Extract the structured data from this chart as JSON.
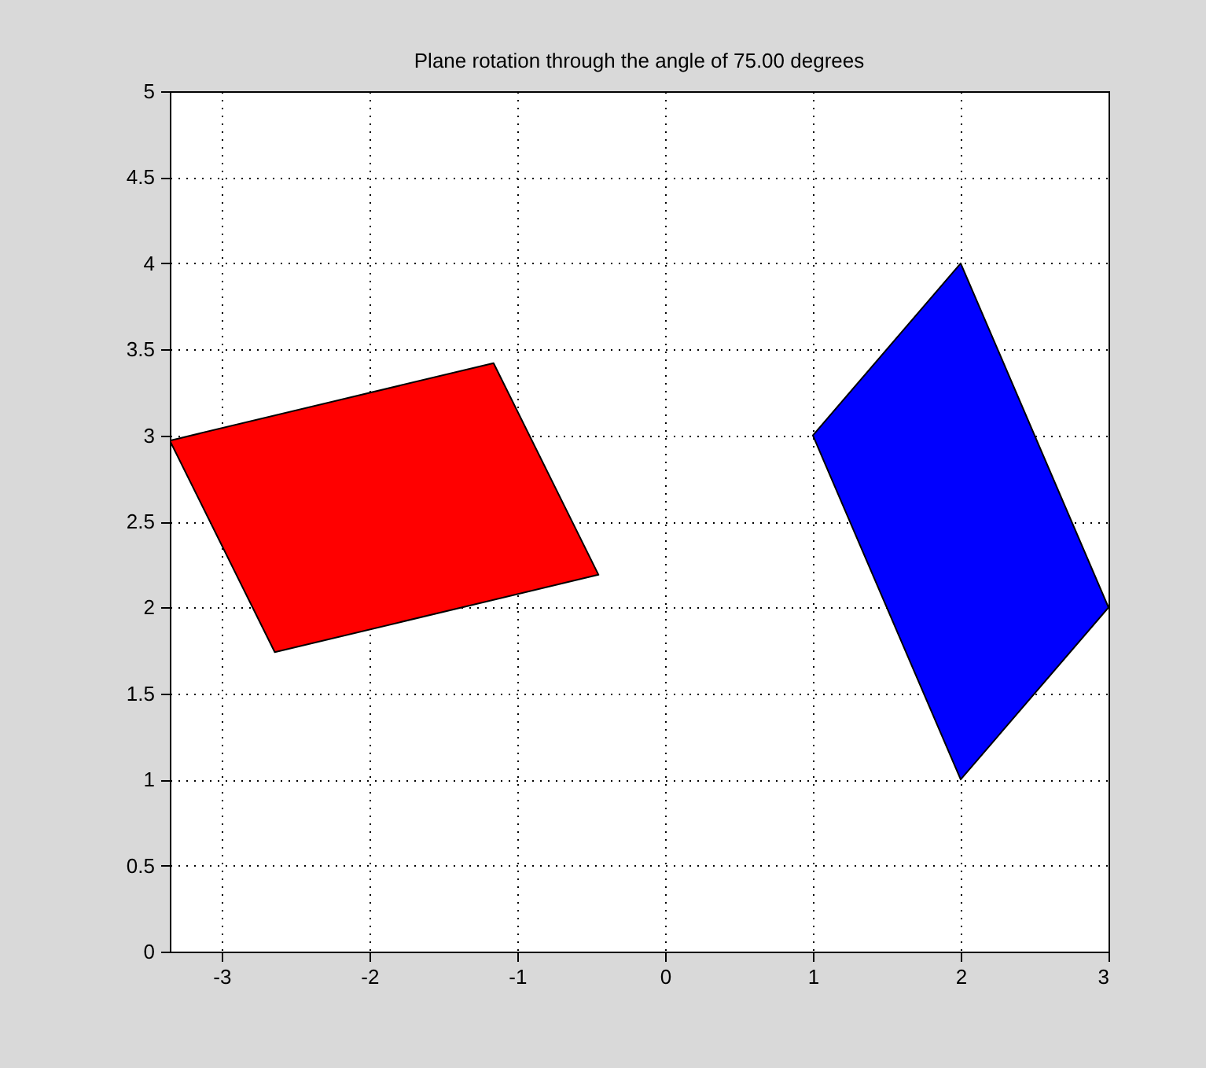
{
  "chart_data": {
    "type": "area",
    "title": "Plane rotation through the angle of 75.00 degrees",
    "series": [
      {
        "color": "#ff0000",
        "x": [
          -2.64,
          -3.35,
          -1.16,
          -0.45
        ],
        "values": [
          1.74,
          2.97,
          3.42,
          2.19
        ]
      },
      {
        "color": "#0000ff",
        "x": [
          1,
          2,
          3,
          2
        ],
        "values": [
          3,
          4,
          2,
          1
        ]
      }
    ],
    "xlim": [
      -3.35,
      3
    ],
    "xticks": [
      -3,
      -2,
      -1,
      0,
      1,
      2,
      3
    ],
    "ylim": [
      0,
      5
    ],
    "yticks": [
      0,
      0.5,
      1,
      1.5,
      2,
      2.5,
      3,
      3.5,
      4,
      4.5,
      5
    ],
    "grid": true,
    "marker": "none"
  }
}
